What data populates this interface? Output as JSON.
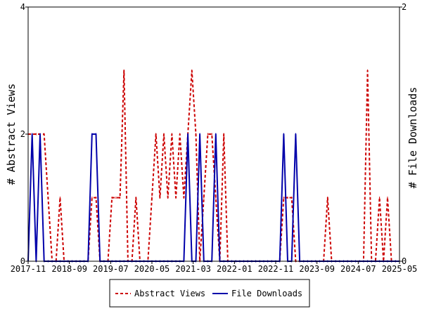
{
  "chart_data": {
    "type": "line",
    "title": "",
    "xlabel": "",
    "ylabel_left": "# Abstract Views",
    "ylabel_right": "# File Downloads",
    "x_tick_labels": [
      "2017-11",
      "2018-09",
      "2019-07",
      "2020-05",
      "2021-03",
      "2022-01",
      "2022-11",
      "2023-09",
      "2024-07",
      "2025-05"
    ],
    "x_range_index": [
      0,
      93
    ],
    "ylim_left": [
      0,
      4
    ],
    "ylim_right": [
      0,
      2
    ],
    "y_ticks_left": [
      "0",
      "2",
      "4"
    ],
    "y_ticks_right": [
      "0",
      "2"
    ],
    "grid": false,
    "legend_placement": "bottom",
    "series": [
      {
        "name": "Abstract Views",
        "axis": "left",
        "color": "#cc0000",
        "style": "dashed",
        "values": [
          2,
          2,
          2,
          2,
          2,
          1,
          0,
          0,
          1,
          0,
          0,
          0,
          0,
          0,
          0,
          0,
          1,
          1,
          0,
          0,
          0,
          1,
          1,
          1,
          3,
          0,
          0,
          1,
          0,
          0,
          0,
          1,
          2,
          1,
          2,
          1,
          2,
          1,
          2,
          1,
          2,
          3,
          2,
          0,
          1,
          2,
          2,
          1,
          0,
          2,
          0,
          0,
          0,
          0,
          0,
          0,
          0,
          0,
          0,
          0,
          0,
          0,
          0,
          0,
          1,
          1,
          1,
          0,
          0,
          0,
          0,
          0,
          0,
          0,
          0,
          1,
          0,
          0,
          0,
          0,
          0,
          0,
          0,
          0,
          0,
          3,
          0,
          0,
          1,
          0,
          1,
          0,
          0,
          0
        ]
      },
      {
        "name": "File Downloads",
        "axis": "right",
        "color": "#0000aa",
        "style": "solid",
        "values": [
          0,
          1,
          0,
          1,
          0,
          0,
          0,
          0,
          0,
          0,
          0,
          0,
          0,
          0,
          0,
          0,
          1,
          1,
          0,
          0,
          0,
          0,
          0,
          0,
          0,
          0,
          0,
          0,
          0,
          0,
          0,
          0,
          0,
          0,
          0,
          0,
          0,
          0,
          0,
          0,
          1,
          0,
          0,
          1,
          0,
          0,
          0,
          1,
          0,
          0,
          0,
          0,
          0,
          0,
          0,
          0,
          0,
          0,
          0,
          0,
          0,
          0,
          0,
          0,
          1,
          0,
          0,
          1,
          0,
          0,
          0,
          0,
          0,
          0,
          0,
          0,
          0,
          0,
          0,
          0,
          0,
          0,
          0,
          0,
          0,
          0,
          0,
          0,
          0,
          0,
          0,
          0,
          0,
          0
        ]
      }
    ]
  }
}
